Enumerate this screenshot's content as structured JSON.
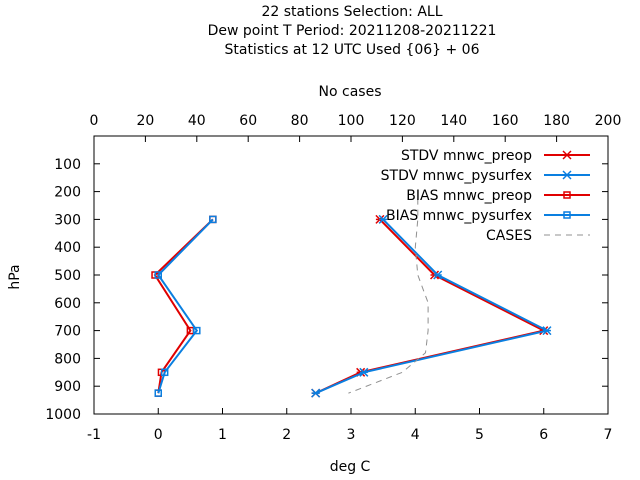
{
  "title_lines": [
    "22 stations Selection: ALL",
    "Dew point T  Period: 20211208-20211221",
    "Statistics at 12 UTC  Used {06} + 06"
  ],
  "chart_data": {
    "type": "line",
    "xlabel": "deg C",
    "ylabel": "hPa",
    "x2label": "No cases",
    "xlim": [
      -1,
      7
    ],
    "x2lim": [
      0,
      200
    ],
    "ylim": [
      1000,
      0
    ],
    "xticks": [
      "-1",
      "0",
      "1",
      "2",
      "3",
      "4",
      "5",
      "6",
      "7"
    ],
    "x2ticks": [
      "0",
      "20",
      "40",
      "60",
      "80",
      "100",
      "120",
      "140",
      "160",
      "180",
      "200"
    ],
    "yticks": [
      "100",
      "200",
      "300",
      "400",
      "500",
      "600",
      "700",
      "800",
      "900",
      "1000"
    ],
    "grid": false,
    "legend_position": "top-right",
    "series": [
      {
        "name": "STDV mnwc_preop",
        "color": "#e00000",
        "marker": "x",
        "axis": "x",
        "points": [
          [
            3.45,
            300
          ],
          [
            4.3,
            500
          ],
          [
            6.0,
            700
          ],
          [
            3.15,
            850
          ],
          [
            2.45,
            925
          ]
        ]
      },
      {
        "name": "STDV mnwc_pysurfex",
        "color": "#0a7fe0",
        "marker": "x",
        "axis": "x",
        "points": [
          [
            3.5,
            300
          ],
          [
            4.35,
            500
          ],
          [
            6.05,
            700
          ],
          [
            3.2,
            850
          ],
          [
            2.45,
            925
          ]
        ]
      },
      {
        "name": "BIAS mnwc_preop",
        "color": "#e00000",
        "marker": "square",
        "axis": "x",
        "points": [
          [
            0.85,
            300
          ],
          [
            -0.05,
            500
          ],
          [
            0.5,
            700
          ],
          [
            0.05,
            850
          ],
          [
            0.0,
            925
          ]
        ]
      },
      {
        "name": "BIAS mnwc_pysurfex",
        "color": "#0a7fe0",
        "marker": "square",
        "axis": "x",
        "points": [
          [
            0.85,
            300
          ],
          [
            0.0,
            500
          ],
          [
            0.6,
            700
          ],
          [
            0.1,
            850
          ],
          [
            0.0,
            925
          ]
        ]
      },
      {
        "name": "CASES",
        "color": "#909090",
        "marker": "none",
        "dashed": true,
        "axis": "x2",
        "points": [
          [
            126,
            225
          ],
          [
            126,
            300
          ],
          [
            125,
            400
          ],
          [
            126,
            500
          ],
          [
            130,
            600
          ],
          [
            130,
            700
          ],
          [
            129,
            780
          ],
          [
            120,
            850
          ],
          [
            99,
            925
          ]
        ]
      }
    ]
  }
}
